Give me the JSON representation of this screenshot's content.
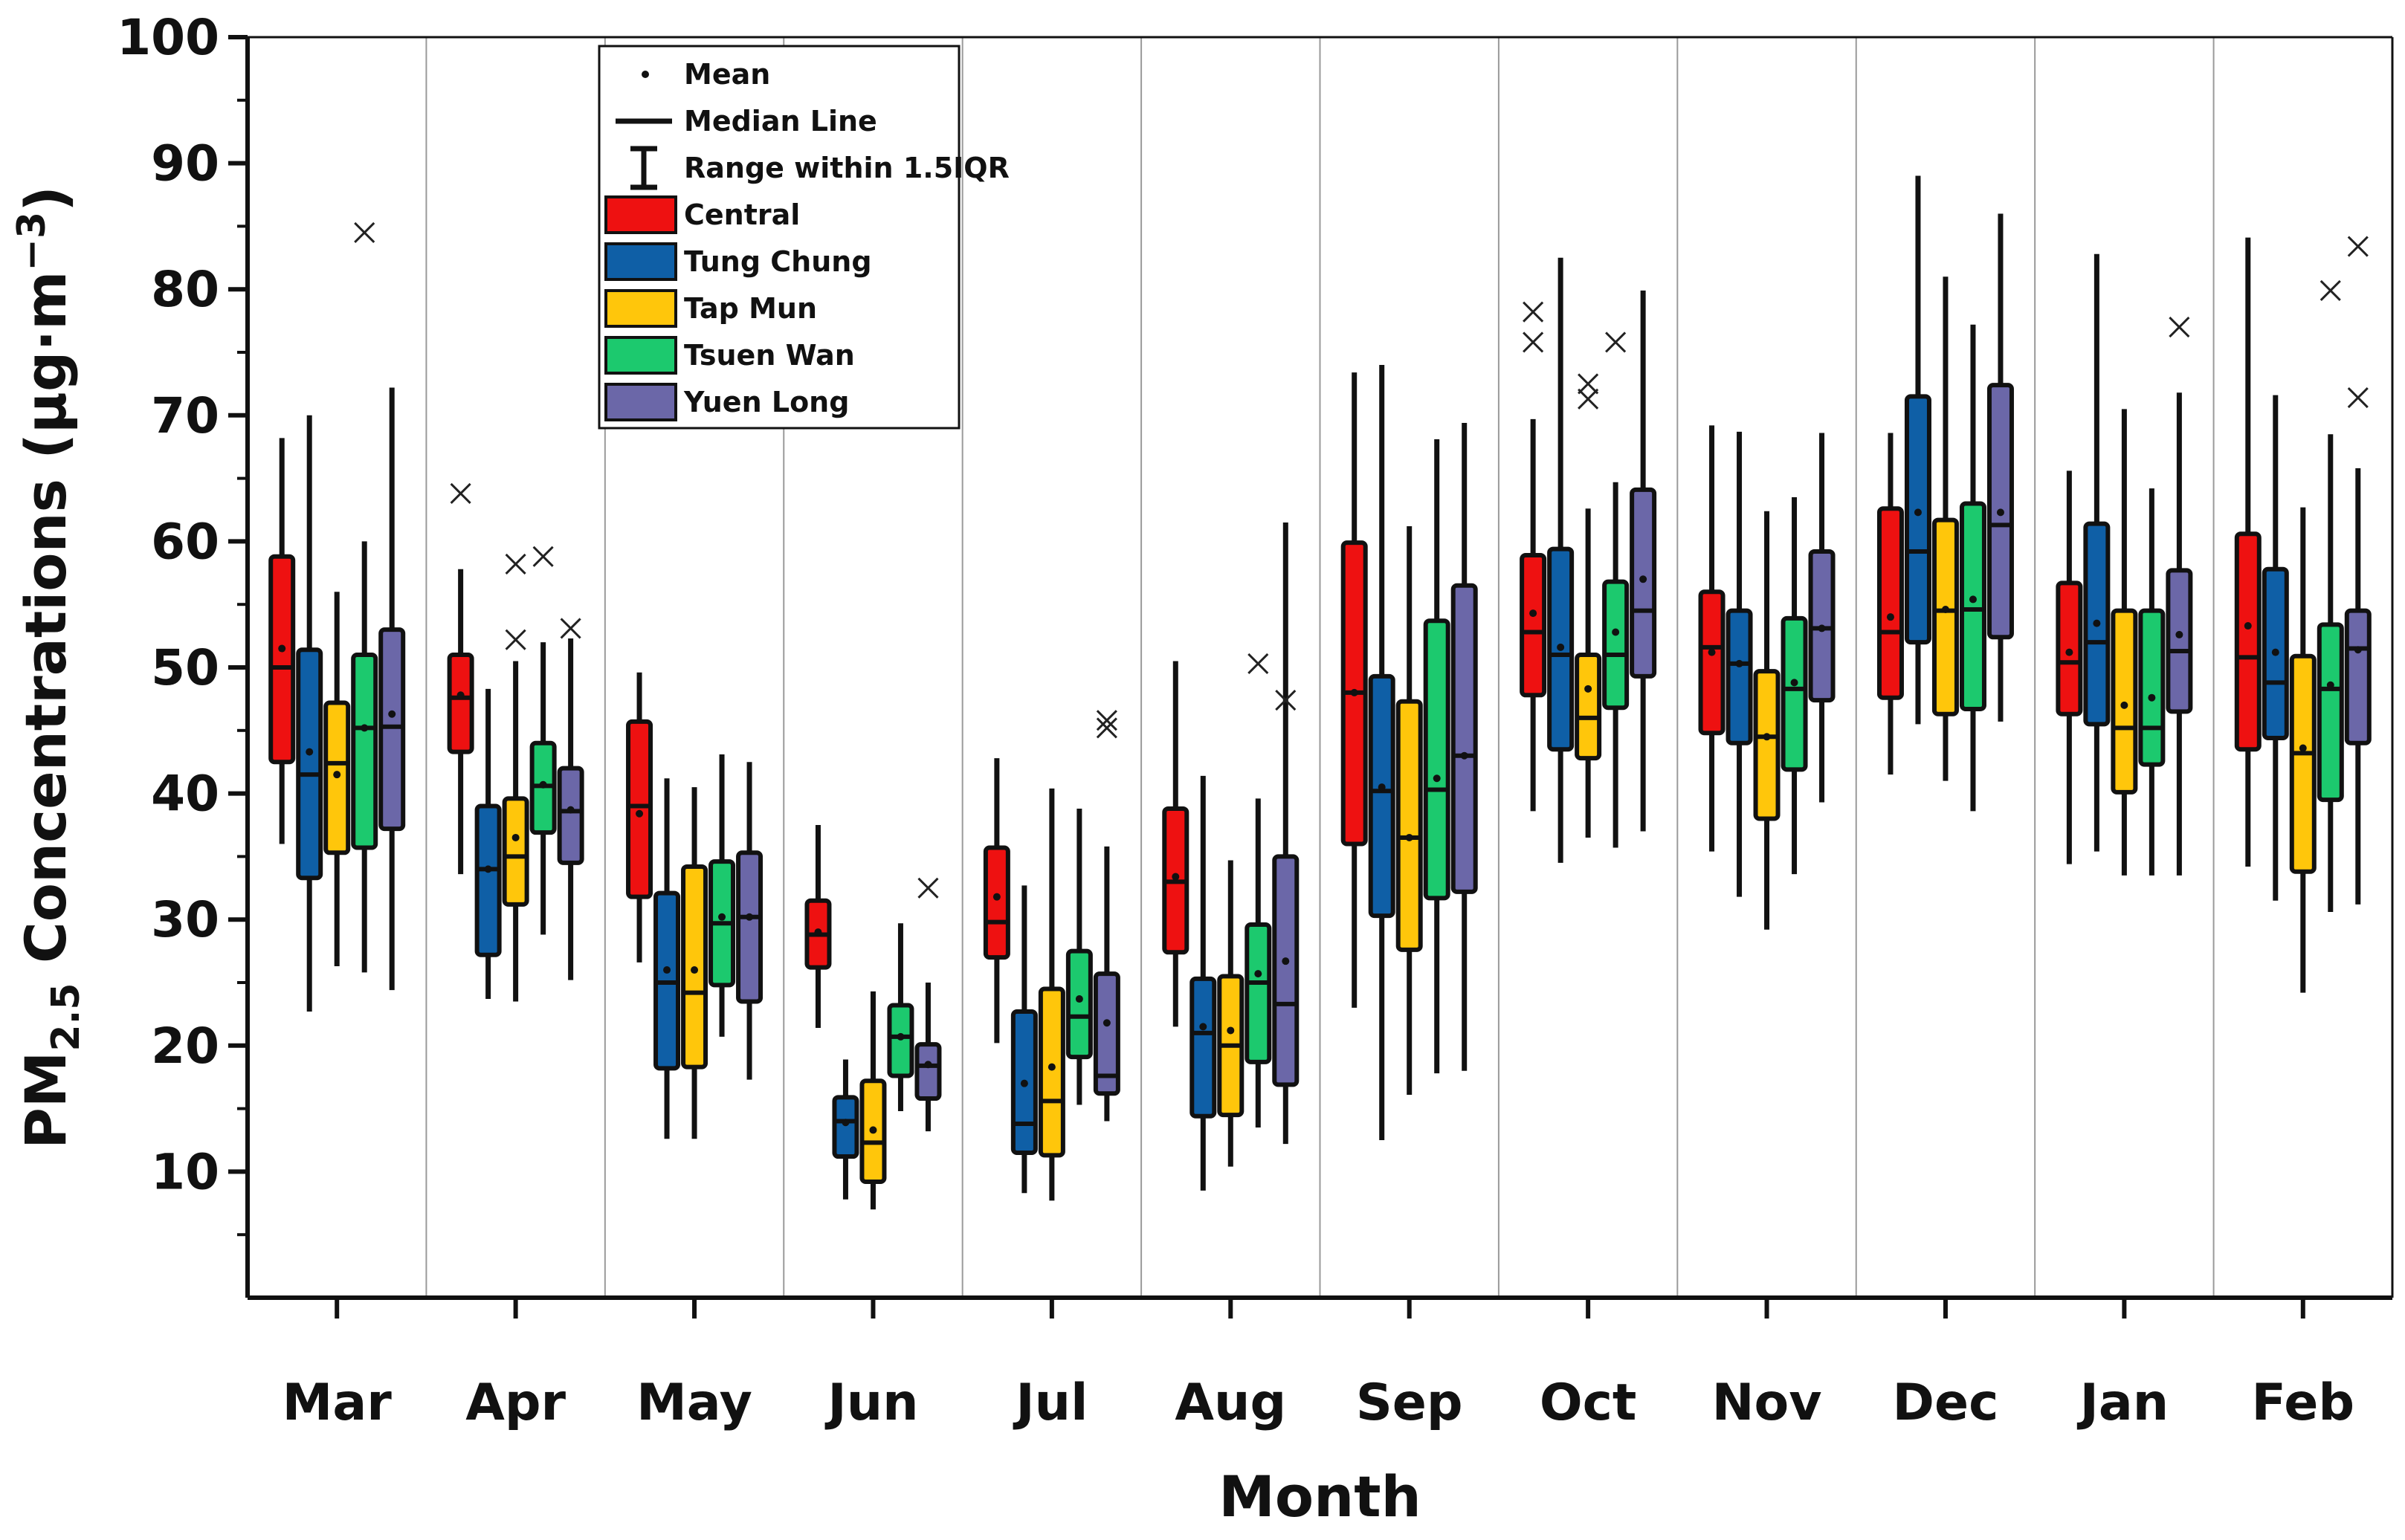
{
  "chart_data": {
    "type": "box",
    "title": "",
    "xlabel": "Month",
    "ylabel": "PM2.5 Concentrations (µg·m⁻³)",
    "ylabel_parts": {
      "pm": "PM",
      "sub": "2.5",
      "rest": " Concentrations (µg·m",
      "sup": "−3",
      "close": ")"
    },
    "ylim": [
      0,
      100
    ],
    "yticks": [
      10,
      20,
      30,
      40,
      50,
      60,
      70,
      80,
      90,
      100
    ],
    "grid": false,
    "legend_position": "top-left",
    "legend_items": {
      "mean": "Mean",
      "median": "Median Line",
      "range": "Range within 1.5IQR"
    },
    "categories": [
      "Mar",
      "Apr",
      "May",
      "Jun",
      "Jul",
      "Aug",
      "Sep",
      "Oct",
      "Nov",
      "Dec",
      "Jan",
      "Feb"
    ],
    "stats_order": [
      "whisker_low",
      "q1",
      "median",
      "q3",
      "whisker_high",
      "mean"
    ],
    "series": [
      {
        "name": "Central",
        "color": "#ee1111",
        "boxes": [
          [
            36.0,
            42.5,
            50.0,
            58.8,
            68.2,
            51.5
          ],
          [
            33.6,
            43.3,
            47.6,
            51.0,
            57.8,
            47.8
          ],
          [
            26.6,
            31.8,
            39.0,
            45.7,
            49.6,
            38.4
          ],
          [
            21.4,
            26.2,
            28.8,
            31.5,
            37.5,
            29.0
          ],
          [
            20.2,
            27.0,
            29.8,
            35.7,
            42.8,
            31.8
          ],
          [
            21.5,
            27.4,
            33.0,
            38.8,
            50.5,
            33.4
          ],
          [
            23.0,
            36.0,
            48.0,
            59.9,
            73.4,
            48.0
          ],
          [
            38.6,
            47.8,
            52.8,
            58.9,
            69.7,
            54.3
          ],
          [
            35.4,
            44.8,
            51.6,
            56.0,
            69.2,
            51.2
          ],
          [
            41.5,
            47.6,
            52.8,
            62.6,
            68.6,
            54.0
          ],
          [
            34.4,
            46.3,
            50.4,
            56.7,
            65.6,
            51.2
          ],
          [
            34.2,
            43.5,
            50.8,
            60.6,
            84.1,
            53.3
          ]
        ],
        "outliers": [
          [],
          [
            63.8
          ],
          [],
          [],
          [],
          [],
          [],
          [
            78.2,
            75.8
          ],
          [],
          [],
          [],
          []
        ]
      },
      {
        "name": "Tung Chung",
        "color": "#0f5fa6",
        "boxes": [
          [
            22.7,
            33.3,
            41.5,
            51.4,
            70.0,
            43.3
          ],
          [
            23.7,
            27.2,
            34.0,
            39.0,
            48.3,
            34.0
          ],
          [
            12.6,
            18.2,
            25.0,
            32.1,
            41.2,
            26.0
          ],
          [
            7.8,
            11.2,
            14.0,
            15.9,
            18.9,
            13.9
          ],
          [
            8.3,
            11.5,
            13.8,
            22.7,
            32.7,
            17.0
          ],
          [
            8.5,
            14.4,
            21.0,
            25.3,
            41.4,
            21.5
          ],
          [
            12.5,
            30.3,
            40.2,
            49.3,
            74.0,
            40.5
          ],
          [
            34.5,
            43.5,
            51.0,
            59.4,
            82.5,
            51.6
          ],
          [
            31.8,
            44.0,
            50.3,
            54.5,
            68.7,
            50.3
          ],
          [
            45.5,
            52.0,
            59.2,
            71.5,
            89.0,
            62.3
          ],
          [
            35.4,
            45.5,
            52.0,
            61.4,
            82.8,
            53.5
          ],
          [
            31.5,
            44.4,
            48.8,
            57.8,
            71.6,
            51.2
          ]
        ],
        "outliers": [
          [],
          [],
          [],
          [],
          [],
          [],
          [],
          [],
          [],
          [],
          [],
          []
        ]
      },
      {
        "name": "Tap Mun",
        "color": "#ffc60b",
        "boxes": [
          [
            26.3,
            35.3,
            42.4,
            47.2,
            56.0,
            41.5
          ],
          [
            23.5,
            31.2,
            35.0,
            39.6,
            50.5,
            36.5
          ],
          [
            12.6,
            18.3,
            24.2,
            34.2,
            40.5,
            26.0
          ],
          [
            7.0,
            9.2,
            12.3,
            17.2,
            24.3,
            13.3
          ],
          [
            7.7,
            11.3,
            15.6,
            24.5,
            40.4,
            18.3
          ],
          [
            10.4,
            14.5,
            20.0,
            25.5,
            34.7,
            21.2
          ],
          [
            16.1,
            27.6,
            36.5,
            47.3,
            61.2,
            36.5
          ],
          [
            36.5,
            42.8,
            46.0,
            51.0,
            62.6,
            48.3
          ],
          [
            29.2,
            38.0,
            44.5,
            49.7,
            62.4,
            44.5
          ],
          [
            41.0,
            46.3,
            54.5,
            61.7,
            81.0,
            54.6
          ],
          [
            33.5,
            40.1,
            45.2,
            54.5,
            70.5,
            47.0
          ],
          [
            24.2,
            33.8,
            43.2,
            50.9,
            62.7,
            43.6
          ]
        ],
        "outliers": [
          [],
          [
            52.2,
            58.2
          ],
          [],
          [],
          [],
          [],
          [],
          [
            72.5,
            71.3
          ],
          [],
          [],
          [],
          []
        ]
      },
      {
        "name": "Tsuen Wan",
        "color": "#1cc96e",
        "boxes": [
          [
            25.8,
            35.7,
            45.2,
            51.0,
            60.0,
            45.2
          ],
          [
            28.8,
            36.9,
            40.6,
            44.0,
            52.0,
            40.7
          ],
          [
            20.7,
            24.8,
            29.7,
            34.6,
            43.1,
            30.2
          ],
          [
            14.8,
            17.6,
            20.7,
            23.2,
            29.7,
            20.7
          ],
          [
            15.3,
            19.1,
            22.3,
            27.5,
            38.8,
            23.7
          ],
          [
            13.5,
            18.7,
            25.0,
            29.6,
            39.6,
            25.7
          ],
          [
            17.8,
            31.7,
            40.3,
            53.7,
            68.1,
            41.2
          ],
          [
            35.7,
            46.8,
            51.0,
            56.8,
            64.7,
            52.8
          ],
          [
            33.6,
            41.9,
            48.3,
            53.9,
            63.5,
            48.8
          ],
          [
            38.6,
            46.7,
            54.6,
            63.0,
            77.2,
            55.4
          ],
          [
            33.5,
            42.3,
            45.2,
            54.5,
            64.2,
            47.6
          ],
          [
            30.6,
            39.5,
            48.3,
            53.4,
            68.5,
            48.6
          ]
        ],
        "outliers": [
          [
            84.5
          ],
          [
            58.8
          ],
          [],
          [],
          [],
          [
            50.3
          ],
          [],
          [
            75.8
          ],
          [],
          [],
          [],
          [
            79.9
          ]
        ]
      },
      {
        "name": "Yuen Long",
        "color": "#6b67a8",
        "boxes": [
          [
            24.4,
            37.2,
            45.3,
            53.0,
            72.2,
            46.3
          ],
          [
            25.2,
            34.5,
            38.6,
            42.0,
            52.3,
            38.7
          ],
          [
            17.3,
            23.5,
            30.2,
            35.3,
            42.5,
            30.2
          ],
          [
            13.2,
            15.8,
            18.4,
            20.1,
            25.0,
            18.5
          ],
          [
            14.0,
            16.2,
            17.6,
            25.7,
            35.8,
            21.8
          ],
          [
            12.2,
            16.9,
            23.3,
            35.0,
            61.5,
            26.7
          ],
          [
            18.0,
            32.2,
            43.0,
            56.5,
            69.4,
            43.0
          ],
          [
            37.0,
            49.3,
            54.5,
            64.1,
            79.9,
            57.0
          ],
          [
            39.3,
            47.4,
            53.1,
            59.2,
            68.6,
            53.1
          ],
          [
            45.7,
            52.4,
            61.3,
            72.4,
            86.0,
            62.3
          ],
          [
            33.5,
            46.5,
            51.3,
            57.7,
            71.8,
            52.6
          ],
          [
            31.2,
            44.0,
            51.5,
            54.5,
            65.8,
            51.4
          ]
        ],
        "outliers": [
          [],
          [
            53.1
          ],
          [],
          [
            32.5
          ],
          [
            45.8,
            45.2
          ],
          [
            47.4
          ],
          [],
          [],
          [],
          [],
          [
            77.0
          ],
          [
            83.4,
            71.4
          ]
        ]
      }
    ]
  }
}
